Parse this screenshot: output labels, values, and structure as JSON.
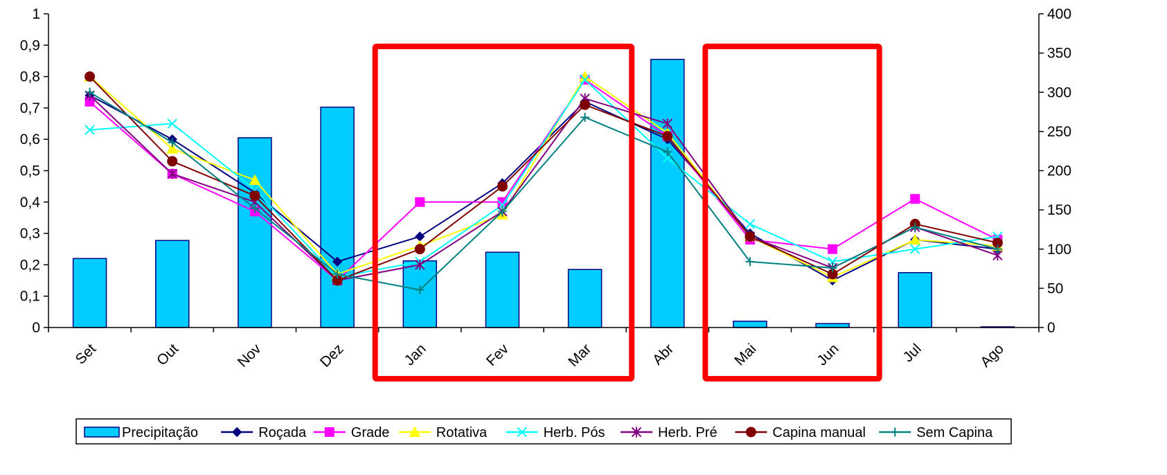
{
  "chart_data": {
    "type": "bar+line",
    "categories": [
      "Set",
      "Out",
      "Nov",
      "Dez",
      "Jan",
      "Fev",
      "Mar",
      "Abr",
      "Mai",
      "Jun",
      "Jul",
      "Ago"
    ],
    "ylim": [
      0,
      1
    ],
    "y_ticks": [
      "0",
      "0,1",
      "0,2",
      "0,3",
      "0,4",
      "0,5",
      "0,6",
      "0,7",
      "0,8",
      "0,9",
      "1"
    ],
    "y2lim": [
      0,
      400
    ],
    "y2_ticks": [
      "0",
      "50",
      "100",
      "150",
      "200",
      "250",
      "300",
      "350",
      "400"
    ],
    "bars": {
      "name": "Precipitação",
      "axis": "right",
      "color": "#00CCFF",
      "values": [
        88,
        111,
        242,
        281,
        85,
        96,
        74,
        342,
        8,
        5,
        70,
        0
      ]
    },
    "series": [
      {
        "name": "Roçada",
        "color": "#000080",
        "marker": "diamond",
        "values": [
          0.74,
          0.6,
          0.43,
          0.21,
          0.29,
          0.46,
          0.72,
          0.6,
          0.3,
          0.15,
          0.28,
          0.25
        ]
      },
      {
        "name": "Grade",
        "color": "#FF00FF",
        "marker": "square",
        "values": [
          0.72,
          0.49,
          0.37,
          0.15,
          0.4,
          0.4,
          0.79,
          0.61,
          0.28,
          0.25,
          0.41,
          0.28
        ]
      },
      {
        "name": "Rotativa",
        "color": "#FFFF00",
        "marker": "triangle",
        "values": [
          0.8,
          0.57,
          0.47,
          0.17,
          0.26,
          0.36,
          0.8,
          0.62,
          0.29,
          0.16,
          0.28,
          0.26
        ]
      },
      {
        "name": "Herb. Pós",
        "color": "#00FFFF",
        "marker": "x",
        "values": [
          0.63,
          0.65,
          0.44,
          0.16,
          0.21,
          0.39,
          0.79,
          0.54,
          0.33,
          0.21,
          0.25,
          0.29
        ]
      },
      {
        "name": "Herb. Pré",
        "color": "#800080",
        "marker": "asterisk",
        "values": [
          0.74,
          0.49,
          0.4,
          0.15,
          0.2,
          0.37,
          0.73,
          0.65,
          0.29,
          0.19,
          0.32,
          0.23
        ]
      },
      {
        "name": "Capina manual",
        "color": "#800000",
        "marker": "circle",
        "values": [
          0.8,
          0.53,
          0.42,
          0.15,
          0.25,
          0.45,
          0.71,
          0.61,
          0.29,
          0.17,
          0.33,
          0.27
        ]
      },
      {
        "name": "Sem Capina",
        "color": "#008080",
        "marker": "plus",
        "values": [
          0.75,
          0.59,
          0.38,
          0.17,
          0.12,
          0.37,
          0.67,
          0.56,
          0.21,
          0.19,
          0.32,
          0.25
        ]
      }
    ],
    "highlight_boxes": [
      {
        "from": "Jan",
        "to": "Mar",
        "color": "#FF0000"
      },
      {
        "from": "Mai",
        "to": "Jun",
        "color": "#FF0000"
      }
    ],
    "grid": false,
    "legend_position": "bottom"
  }
}
